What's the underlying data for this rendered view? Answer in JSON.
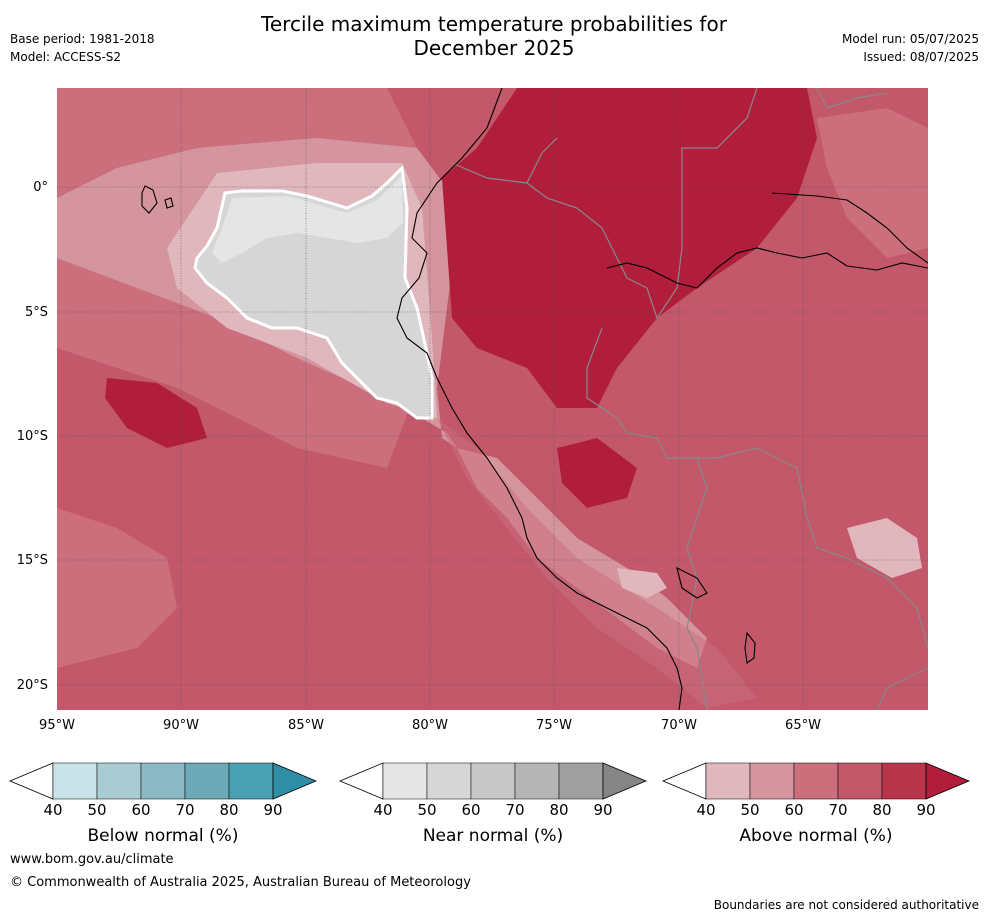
{
  "header": {
    "title_line1": "Tercile maximum temperature probabilities for",
    "title_line2": "December 2025",
    "base_period": "Base period: 1981-2018",
    "model": "Model: ACCESS-S2",
    "model_run": "Model run: 05/07/2025",
    "issued": "Issued: 08/07/2025"
  },
  "map": {
    "lon_range": [
      -95,
      -60
    ],
    "lat_range": [
      -21,
      4
    ],
    "lon_ticks": [
      "95°W",
      "90°W",
      "85°W",
      "80°W",
      "75°W",
      "70°W",
      "65°W"
    ],
    "lat_ticks": [
      "0°",
      "5°S",
      "10°S",
      "15°S",
      "20°S"
    ],
    "regions": {
      "dominant_category": "Above normal",
      "near_normal_region": "Near normal"
    }
  },
  "colorbars": [
    {
      "label": "Below normal (%)",
      "ticks": [
        "40",
        "50",
        "60",
        "70",
        "80",
        "90"
      ],
      "colors": [
        "#c9e3e8",
        "#a9cbd1",
        "#8cb9c4",
        "#6ea9b7",
        "#4aa1b2",
        "#2e8ea6"
      ]
    },
    {
      "label": "Near normal (%)",
      "ticks": [
        "40",
        "50",
        "60",
        "70",
        "80",
        "90"
      ],
      "colors": [
        "#e5e5e5",
        "#d6d6d6",
        "#c8c8c8",
        "#b5b5b5",
        "#9f9f9f",
        "#858585"
      ]
    },
    {
      "label": "Above normal (%)",
      "ticks": [
        "40",
        "50",
        "60",
        "70",
        "80",
        "90"
      ],
      "colors": [
        "#e0b7bd",
        "#d4959e",
        "#cb6f7d",
        "#c2586a",
        "#b8354c",
        "#b11e3c"
      ]
    }
  ],
  "footer": {
    "website": "www.bom.gov.au/climate",
    "copyright": "© Commonwealth of Australia 2025, Australian Bureau of Meteorology",
    "disclaimer": "Boundaries are not considered authoritative"
  }
}
